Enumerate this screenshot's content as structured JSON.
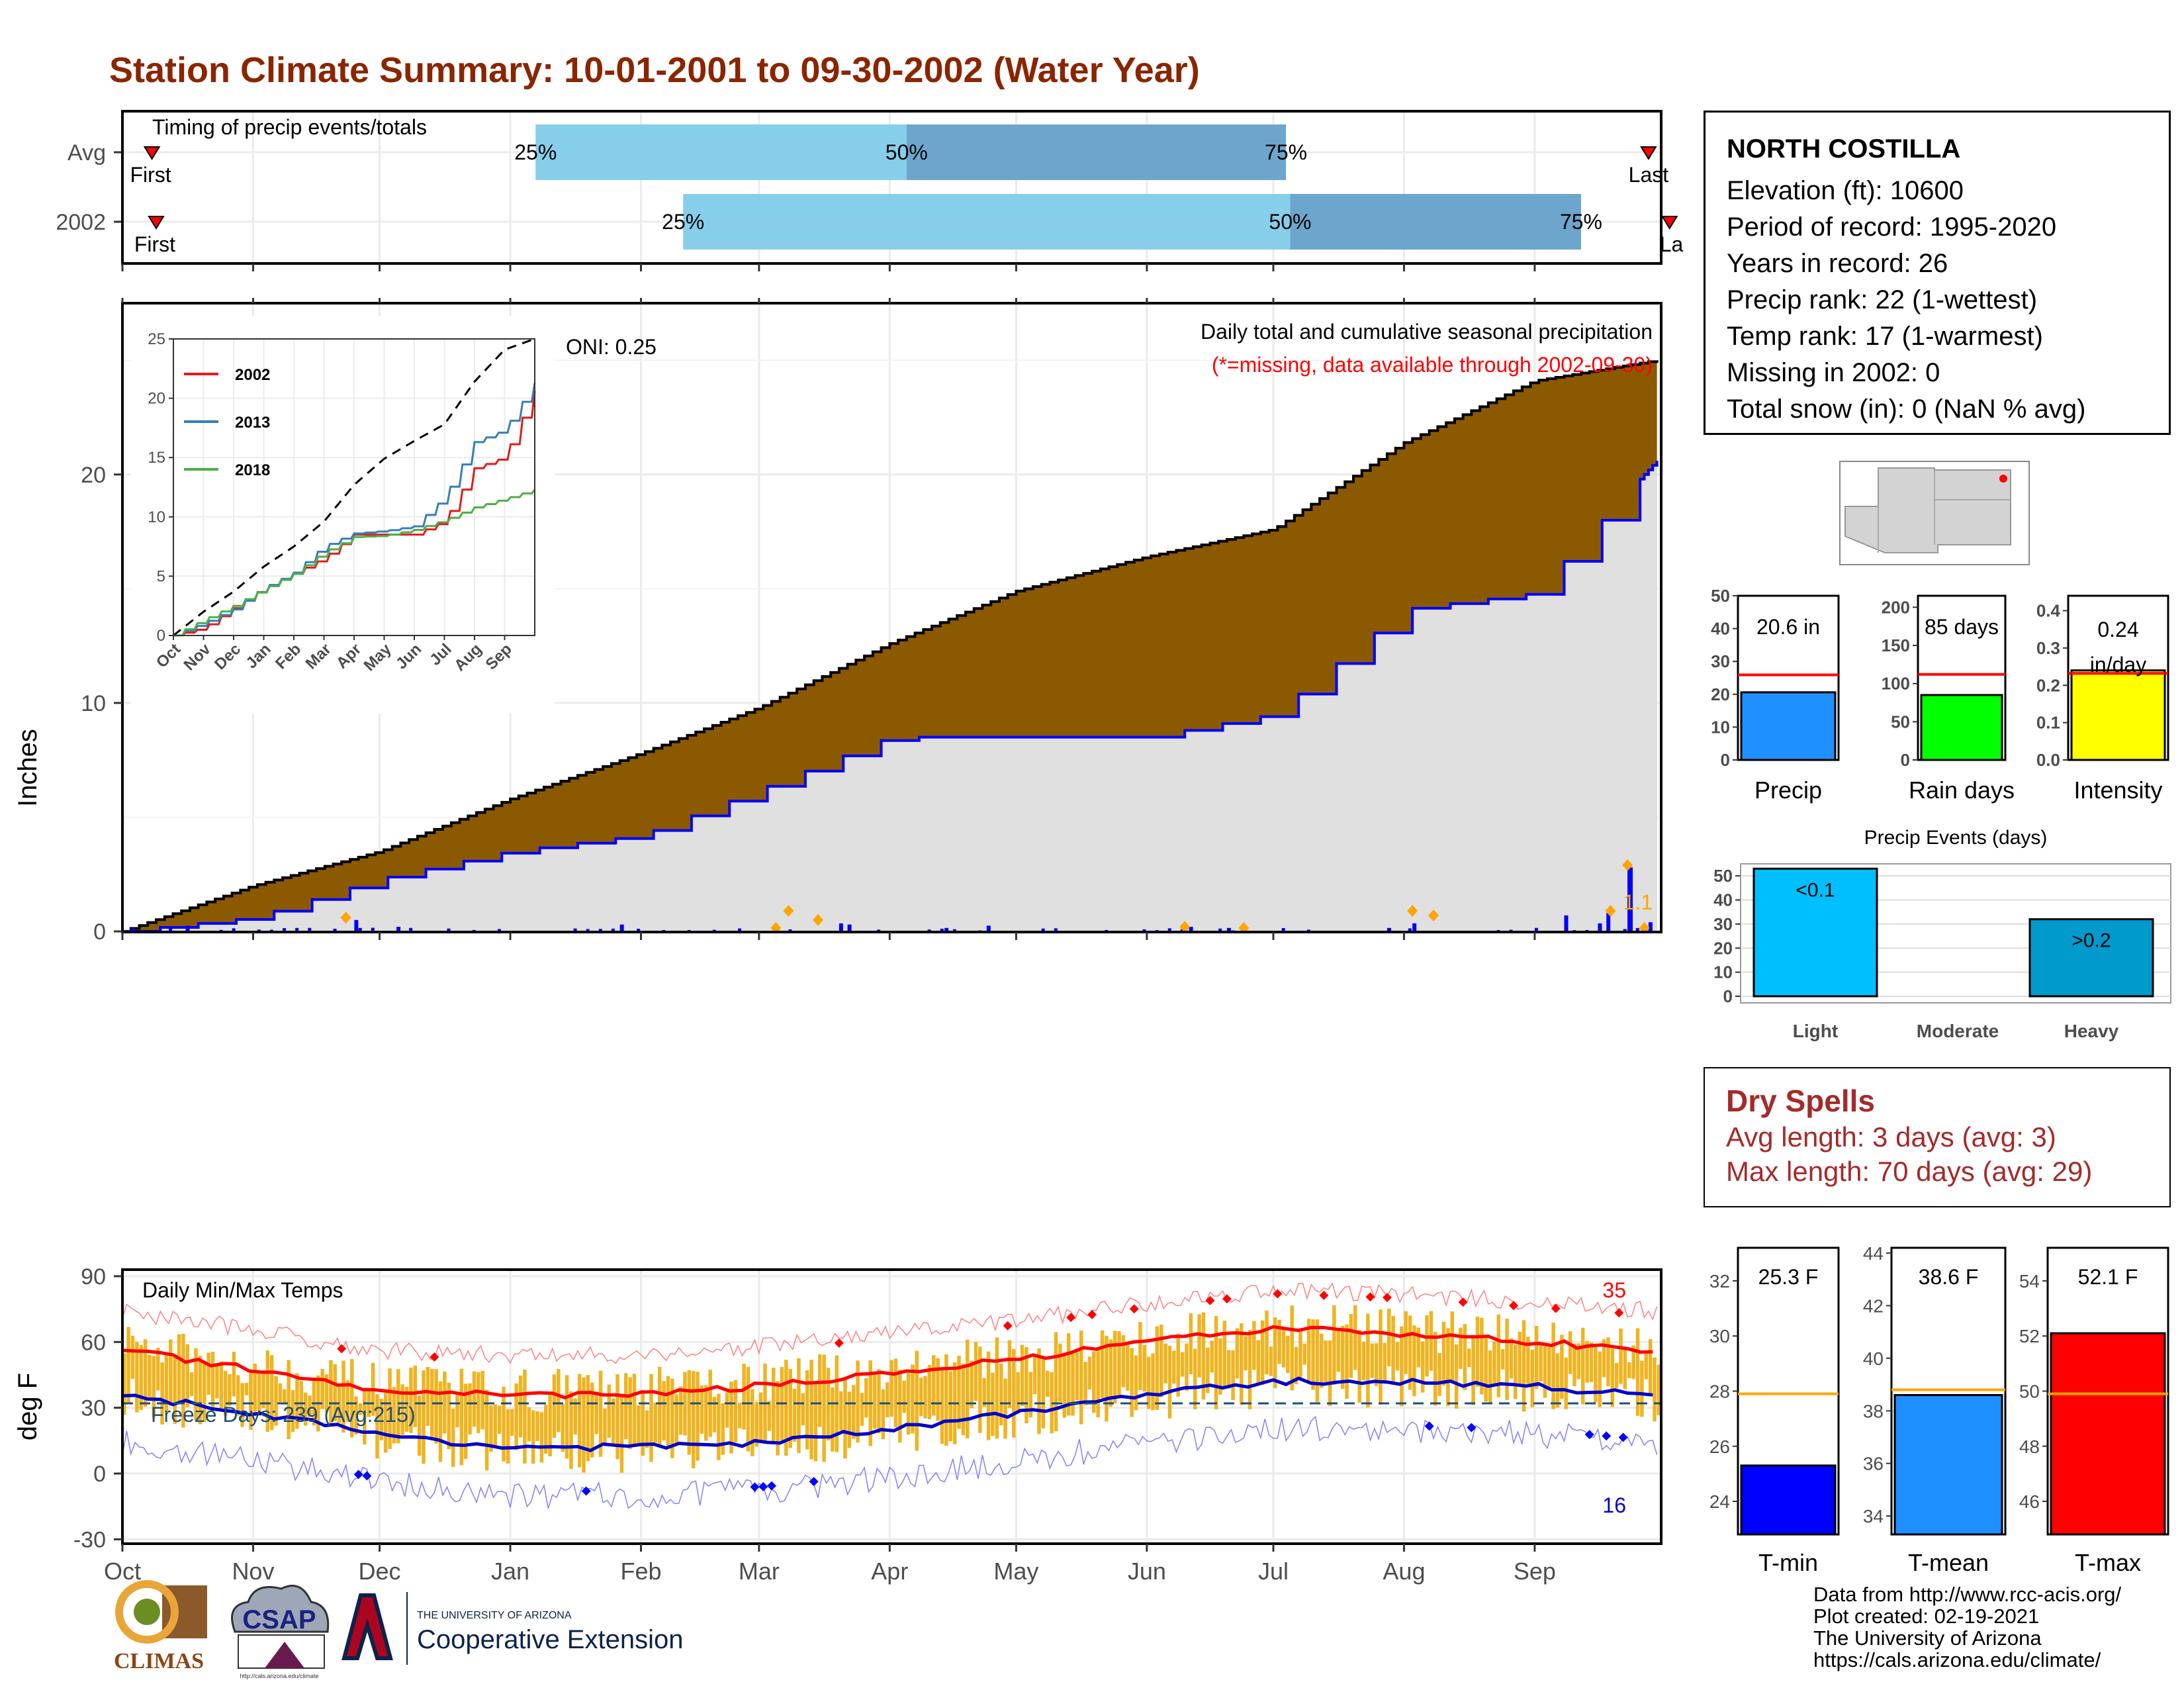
{
  "title": "Station Climate Summary: 10-01-2001 to 09-30-2002 (Water Year)",
  "colors": {
    "title": "#8B2500",
    "precip_cum": "#8B5A00",
    "daily_precip": "#0000FF",
    "box_light": "#87CEEB",
    "box_dark": "#6CA6CD",
    "temp_bar": "#EEB422",
    "tmax_line": "#FF0000",
    "tmin_line": "#0000CC"
  },
  "timing": {
    "label": "Timing of precip events/totals",
    "rows": [
      {
        "name": "Avg",
        "first": "First",
        "last": "Last",
        "p25": "25%",
        "p50": "50%",
        "p75": "75%",
        "first_date": "2001-10-08",
        "last_date": "2002-09-28",
        "q25_date": "2002-01-07",
        "q50_date": "2002-04-05",
        "q75_date": "2002-07-04"
      },
      {
        "name": "2002",
        "first": "First",
        "last": "La",
        "p25": "25%",
        "p50": "50%",
        "p75": "75%",
        "first_date": "2001-10-09",
        "last_date": "2002-10-03",
        "q25_date": "2002-02-11",
        "q50_date": "2002-07-05",
        "q75_date": "2002-09-12"
      }
    ]
  },
  "main": {
    "ylabel": "Inches",
    "note1": "Daily total and cumulative seasonal precipitation",
    "note2": "(*=missing, data available through 2002-09-30)",
    "oni": "ONI: 0.25",
    "yticks": [
      "0",
      "10",
      "20"
    ],
    "months": [
      "Oct",
      "Nov",
      "Dec",
      "Jan",
      "Feb",
      "Mar",
      "Apr",
      "May",
      "Jun",
      "Jul",
      "Aug",
      "Sep"
    ],
    "annotation": "1.1"
  },
  "inset": {
    "yticks": [
      "0",
      "5",
      "10",
      "15",
      "20",
      "25"
    ],
    "months": [
      "Oct",
      "Nov",
      "Dec",
      "Jan",
      "Feb",
      "Mar",
      "Apr",
      "May",
      "Jun",
      "Jul",
      "Aug",
      "Sep"
    ],
    "legend": [
      "2002",
      "2013",
      "2018"
    ],
    "legend_colors": [
      "#E41A1C",
      "#377EB8",
      "#4DAF4A"
    ]
  },
  "temps": {
    "label": "Daily Min/Max Temps",
    "ylabel": "deg F",
    "freeze": "Freeze Days: 239 (Avg:215)",
    "max_count": "35",
    "min_count": "16",
    "yticks": [
      "-30",
      "0",
      "30",
      "60",
      "90"
    ],
    "months": [
      "Oct",
      "Nov",
      "Dec",
      "Jan",
      "Feb",
      "Mar",
      "Apr",
      "May",
      "Jun",
      "Jul",
      "Aug",
      "Sep"
    ]
  },
  "station": {
    "name": "NORTH COSTILLA",
    "lines": [
      "Elevation (ft): 10600",
      "Period of record: 1995-2020",
      "Years in record: 26",
      "Precip rank: 22 (1-wettest)",
      "Temp rank: 17 (1-warmest)",
      "Missing in 2002: 0",
      "Total snow (in): 0 (NaN % avg)"
    ]
  },
  "summary_bars": [
    {
      "label": "Precip",
      "value_text": "20.6 in",
      "value": 20.6,
      "avg": 25.9,
      "ymax": 50,
      "ticks": [
        "0",
        "10",
        "20",
        "30",
        "40",
        "50"
      ],
      "tick_vals": [
        0,
        10,
        20,
        30,
        40,
        50
      ],
      "color": "#1E90FF"
    },
    {
      "label": "Rain days",
      "value_text": "85 days",
      "value": 85,
      "avg": 112,
      "ymax": 215,
      "ticks": [
        "0",
        "50",
        "100",
        "150",
        "200"
      ],
      "tick_vals": [
        0,
        50,
        100,
        150,
        200
      ],
      "color": "#00FF00"
    },
    {
      "label": "Intensity",
      "value_text": "0.24",
      "value_text2": "in/day",
      "value": 0.24,
      "avg": 0.232,
      "ymax": 0.44,
      "ticks": [
        "0.0",
        "0.1",
        "0.2",
        "0.3",
        "0.4"
      ],
      "tick_vals": [
        0,
        0.1,
        0.2,
        0.3,
        0.4
      ],
      "color": "#FFFF00"
    }
  ],
  "events": {
    "title": "Precip Events (days)",
    "ticks": [
      "0",
      "10",
      "20",
      "30",
      "40",
      "50"
    ],
    "categories": [
      "Light",
      "Moderate",
      "Heavy"
    ],
    "values": [
      53,
      0,
      32
    ],
    "bar_labels": [
      "<0.1",
      "",
      ">0.2"
    ],
    "colors": [
      "#00BFFF",
      "#1E90FF",
      "#009ACD"
    ]
  },
  "dry": {
    "title": "Dry Spells",
    "line1": "Avg length: 3 days (avg: 3)",
    "line2": "Max length: 70 days (avg: 29)"
  },
  "temp_bars": [
    {
      "label": "T-min",
      "value_text": "25.3 F",
      "value": 25.3,
      "avg": 27.9,
      "ymin": 22.8,
      "ymax": 33.2,
      "ticks": [
        "24",
        "26",
        "28",
        "30",
        "32"
      ],
      "tick_vals": [
        24,
        26,
        28,
        30,
        32
      ],
      "color": "#0000FF"
    },
    {
      "label": "T-mean",
      "value_text": "38.6 F",
      "value": 38.6,
      "avg": 38.8,
      "ymin": 33.3,
      "ymax": 44.2,
      "ticks": [
        "34",
        "36",
        "38",
        "40",
        "42",
        "44"
      ],
      "tick_vals": [
        34,
        36,
        38,
        40,
        42,
        44
      ],
      "color": "#1E90FF"
    },
    {
      "label": "T-max",
      "value_text": "52.1 F",
      "value": 52.1,
      "avg": 49.9,
      "ymin": 44.8,
      "ymax": 55.2,
      "ticks": [
        "46",
        "48",
        "50",
        "52",
        "54"
      ],
      "tick_vals": [
        46,
        48,
        50,
        52,
        54
      ],
      "color": "#FF0000"
    }
  ],
  "footer": [
    "Data from http://www.rcc-acis.org/",
    "Plot created: 02-19-2021",
    "The University of Arizona",
    "https://cals.arizona.edu/climate/"
  ],
  "logos": {
    "climas": "CLIMAS",
    "csap": "CSAP",
    "ua_line1": "THE UNIVERSITY OF ARIZONA",
    "ua_line2": "Cooperative Extension",
    "csap_url": "http://cals.arizona.edu/climate"
  },
  "chart_data": [
    {
      "type": "area",
      "title": "Daily total and cumulative seasonal precipitation",
      "ylabel": "Inches",
      "ylim": [
        0,
        27.5
      ],
      "x": [
        "2001-10-01",
        "2001-11-01",
        "2001-12-01",
        "2002-01-01",
        "2002-02-01",
        "2002-03-01",
        "2002-04-01",
        "2002-05-01",
        "2002-06-01",
        "2002-07-01",
        "2002-08-01",
        "2002-09-01",
        "2002-09-30"
      ],
      "series": [
        {
          "name": "Avg",
          "values": [
            0,
            2.0,
            3.5,
            5.8,
            7.8,
            9.8,
            12.6,
            14.9,
            16.4,
            17.6,
            21.4,
            24.1,
            25.0
          ]
        },
        {
          "name": "2002",
          "values": [
            0,
            0.6,
            2.3,
            3.5,
            4.2,
            6.2,
            8.5,
            8.5,
            8.5,
            9.5,
            14.1,
            14.8,
            20.6
          ]
        }
      ]
    },
    {
      "type": "line",
      "xlabel": "",
      "ylabel": "",
      "ylim": [
        0,
        25
      ],
      "x": [
        "Oct",
        "Nov",
        "Dec",
        "Jan",
        "Feb",
        "Mar",
        "Apr",
        "May",
        "Jun",
        "Jul",
        "Aug",
        "Sep",
        "Sep-end"
      ],
      "series": [
        {
          "name": "Avg",
          "values": [
            0,
            2.0,
            3.7,
            5.8,
            7.5,
            9.6,
            12.7,
            14.9,
            16.4,
            17.8,
            21.4,
            24.1,
            25.0
          ]
        },
        {
          "name": "2002",
          "values": [
            0,
            0.6,
            2.3,
            4.0,
            5.2,
            6.5,
            8.5,
            8.5,
            8.5,
            9.6,
            14.1,
            15.0,
            20.6
          ]
        },
        {
          "name": "2013",
          "values": [
            0,
            1.0,
            2.2,
            4.0,
            5.3,
            7.5,
            8.6,
            8.8,
            9.2,
            11.6,
            16.3,
            17.3,
            21.3
          ]
        },
        {
          "name": "2018",
          "values": [
            0,
            1.3,
            2.5,
            3.9,
            5.2,
            7.0,
            8.3,
            8.4,
            8.9,
            9.7,
            10.8,
            11.5,
            12.3
          ]
        }
      ]
    },
    {
      "type": "line",
      "title": "Daily Min/Max Temps",
      "ylabel": "deg F",
      "ylim": [
        -32,
        93
      ],
      "x": [
        "Oct",
        "Nov",
        "Dec",
        "Jan",
        "Feb",
        "Mar",
        "Apr",
        "May",
        "Jun",
        "Jul",
        "Aug",
        "Sep",
        "Sep-end"
      ],
      "series": [
        {
          "name": "Tmax avg",
          "values": [
            56,
            48,
            38,
            36,
            36,
            40,
            46,
            52,
            60,
            66,
            64,
            60,
            56
          ]
        },
        {
          "name": "Tmin avg",
          "values": [
            36,
            28,
            18,
            12,
            12,
            14,
            20,
            28,
            36,
            42,
            42,
            40,
            35
          ]
        }
      ]
    },
    {
      "type": "bar",
      "categories": [
        "Precip",
        "Rain days",
        "Intensity"
      ],
      "values": [
        20.6,
        85,
        0.24
      ]
    },
    {
      "type": "bar",
      "title": "Precip Events (days)",
      "categories": [
        "Light",
        "Moderate",
        "Heavy"
      ],
      "values": [
        53,
        0,
        32
      ]
    },
    {
      "type": "bar",
      "categories": [
        "T-min",
        "T-mean",
        "T-max"
      ],
      "values": [
        25.3,
        38.6,
        52.1
      ]
    }
  ]
}
